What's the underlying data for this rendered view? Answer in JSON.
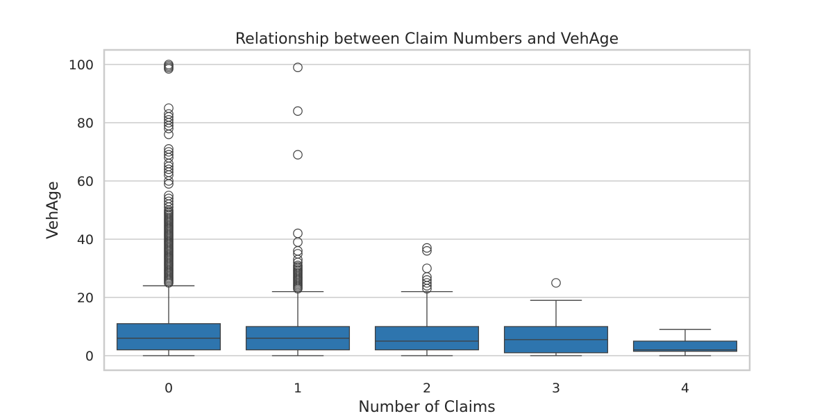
{
  "chart_data": {
    "type": "box",
    "title": "Relationship between Claim Numbers and VehAge",
    "xlabel": "Number of Claims",
    "ylabel": "VehAge",
    "categories": [
      "0",
      "1",
      "2",
      "3",
      "4"
    ],
    "yticks": [
      "0",
      "20",
      "40",
      "60",
      "80",
      "100"
    ],
    "ylim": [
      -5,
      105
    ],
    "grid": true,
    "box_color": "#2e75ae",
    "boxes": [
      {
        "category": "0",
        "whisker_low": 0,
        "q1": 2,
        "median": 6,
        "q3": 11,
        "whisker_high": 24,
        "fliers": [
          25,
          25.5,
          26,
          26.5,
          27,
          27.5,
          28,
          28.5,
          29,
          29.5,
          30,
          30.5,
          31,
          31.5,
          32,
          32.5,
          33,
          33.5,
          34,
          34.5,
          35,
          35.5,
          36,
          36.5,
          37,
          37.5,
          38,
          38.5,
          39,
          39.5,
          40,
          40.5,
          41,
          41.5,
          42,
          42.5,
          43,
          43.5,
          44,
          44.5,
          45,
          45.5,
          46,
          46.5,
          47,
          47.5,
          48,
          48.5,
          49,
          49.5,
          50,
          51,
          52,
          53,
          54,
          55,
          59,
          60,
          62,
          63,
          64,
          65,
          66,
          68,
          69,
          70,
          71,
          76,
          78,
          79,
          80,
          81,
          82,
          83,
          85,
          98.5,
          99,
          99.5,
          100
        ]
      },
      {
        "category": "1",
        "whisker_low": 0,
        "q1": 2,
        "median": 6,
        "q3": 10,
        "whisker_high": 22,
        "fliers": [
          23,
          23.5,
          24,
          24.5,
          25,
          25.5,
          26,
          26.5,
          27,
          27.5,
          28,
          28.5,
          29,
          29.5,
          30,
          30.5,
          31,
          32,
          33,
          35,
          36,
          39,
          42,
          69,
          84,
          99
        ]
      },
      {
        "category": "2",
        "whisker_low": 0,
        "q1": 2,
        "median": 5,
        "q3": 10,
        "whisker_high": 22,
        "fliers": [
          23,
          24,
          25,
          26,
          27,
          30,
          36,
          37
        ]
      },
      {
        "category": "3",
        "whisker_low": 0,
        "q1": 1,
        "median": 5.5,
        "q3": 10,
        "whisker_high": 19,
        "fliers": [
          25
        ]
      },
      {
        "category": "4",
        "whisker_low": 0,
        "q1": 1.5,
        "median": 2,
        "q3": 5,
        "whisker_high": 9,
        "fliers": []
      }
    ]
  }
}
